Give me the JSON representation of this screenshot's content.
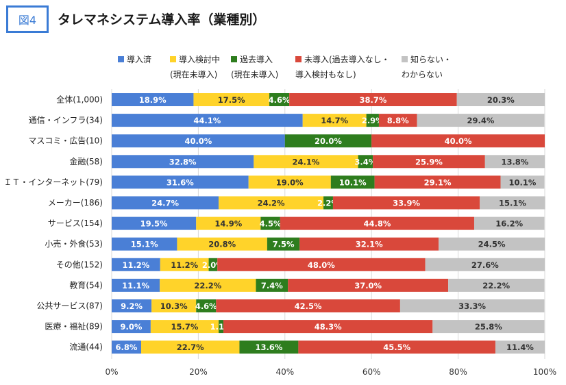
{
  "figure_label": "図4",
  "chart_data": {
    "type": "bar",
    "orientation": "horizontal",
    "stacked": true,
    "title": "タレマネシステム導入率（業種別）",
    "categories": [
      "全体(1,000)",
      "通信・インフラ(34)",
      "マスコミ・広告(10)",
      "金融(58)",
      "ＩＴ・インターネット(79)",
      "メーカー(186)",
      "サービス(154)",
      "小売・外食(53)",
      "その他(152)",
      "教育(54)",
      "公共サービス(87)",
      "医療・福祉(89)",
      "流通(44)"
    ],
    "series": [
      {
        "name": "導入済",
        "legend_lines": [
          "導入済"
        ],
        "color": "#4a7fd6",
        "label_color": "#ffffff",
        "values": [
          18.9,
          44.1,
          40.0,
          32.8,
          31.6,
          24.7,
          19.5,
          15.1,
          11.2,
          11.1,
          9.2,
          9.0,
          6.8
        ]
      },
      {
        "name": "導入検討中(現在未導入)",
        "legend_lines": [
          "導入検討中",
          "(現在未導入)"
        ],
        "color": "#ffd32a",
        "label_color": "#333333",
        "values": [
          17.5,
          14.7,
          0.0,
          24.1,
          19.0,
          24.2,
          14.9,
          20.8,
          11.2,
          22.2,
          10.3,
          15.7,
          22.7
        ]
      },
      {
        "name": "過去導入(現在未導入)",
        "legend_lines": [
          "過去導入",
          "(現在未導入)"
        ],
        "color": "#2e7d1e",
        "label_color": "#ffffff",
        "values": [
          4.6,
          2.9,
          20.0,
          3.4,
          10.1,
          2.2,
          4.5,
          7.5,
          2.0,
          7.4,
          4.6,
          1.1,
          13.6
        ]
      },
      {
        "name": "未導入(過去導入なし・導入検討もなし)",
        "legend_lines": [
          "未導入(過去導入なし・",
          "導入検討もなし)"
        ],
        "color": "#d9483b",
        "label_color": "#ffffff",
        "values": [
          38.7,
          8.8,
          40.0,
          25.9,
          29.1,
          33.9,
          44.8,
          32.1,
          48.0,
          37.0,
          42.5,
          48.3,
          45.5
        ]
      },
      {
        "name": "知らない・わからない",
        "legend_lines": [
          "知らない・",
          "わからない"
        ],
        "color": "#c3c3c3",
        "label_color": "#333333",
        "values": [
          20.3,
          29.4,
          0.0,
          13.8,
          10.1,
          15.1,
          16.2,
          24.5,
          27.6,
          22.2,
          33.3,
          25.8,
          11.4
        ]
      }
    ],
    "x_ticks": [
      "0%",
      "20%",
      "40%",
      "60%",
      "80%",
      "100%"
    ],
    "xlim": [
      0,
      100
    ],
    "xlabel": "",
    "ylabel": "",
    "legend_position": "top",
    "grid": true
  }
}
